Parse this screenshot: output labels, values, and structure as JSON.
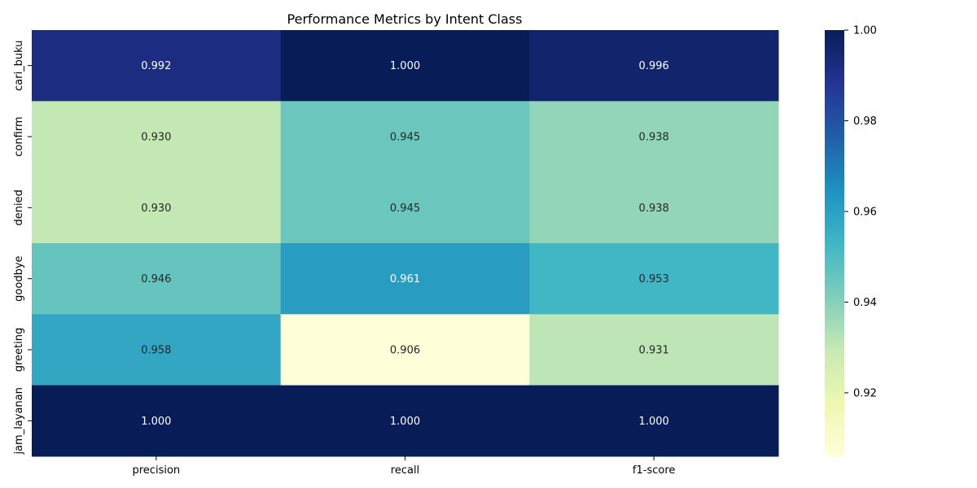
{
  "chart_data": {
    "type": "heatmap",
    "title": "Performance Metrics by Intent Class",
    "xlabel": "",
    "ylabel": "",
    "columns": [
      "precision",
      "recall",
      "f1-score"
    ],
    "rows": [
      "cari_buku",
      "confirm",
      "denied",
      "goodbye",
      "greeting",
      "jam_layanan"
    ],
    "values": [
      [
        0.992,
        1.0,
        0.996
      ],
      [
        0.93,
        0.945,
        0.938
      ],
      [
        0.93,
        0.945,
        0.938
      ],
      [
        0.946,
        0.961,
        0.953
      ],
      [
        0.958,
        0.906,
        0.931
      ],
      [
        1.0,
        1.0,
        1.0
      ]
    ],
    "annotations": [
      [
        "0.992",
        "1.000",
        "0.996"
      ],
      [
        "0.930",
        "0.945",
        "0.938"
      ],
      [
        "0.930",
        "0.945",
        "0.938"
      ],
      [
        "0.946",
        "0.961",
        "0.953"
      ],
      [
        "0.958",
        "0.906",
        "0.931"
      ],
      [
        "1.000",
        "1.000",
        "1.000"
      ]
    ],
    "colormap": "YlGnBu",
    "colorbar": {
      "range": [
        0.906,
        1.0
      ],
      "ticks": [
        0.92,
        0.94,
        0.96,
        0.98,
        1.0
      ],
      "tick_labels": [
        "0.92",
        "0.94",
        "0.96",
        "0.98",
        "1.00"
      ]
    }
  }
}
